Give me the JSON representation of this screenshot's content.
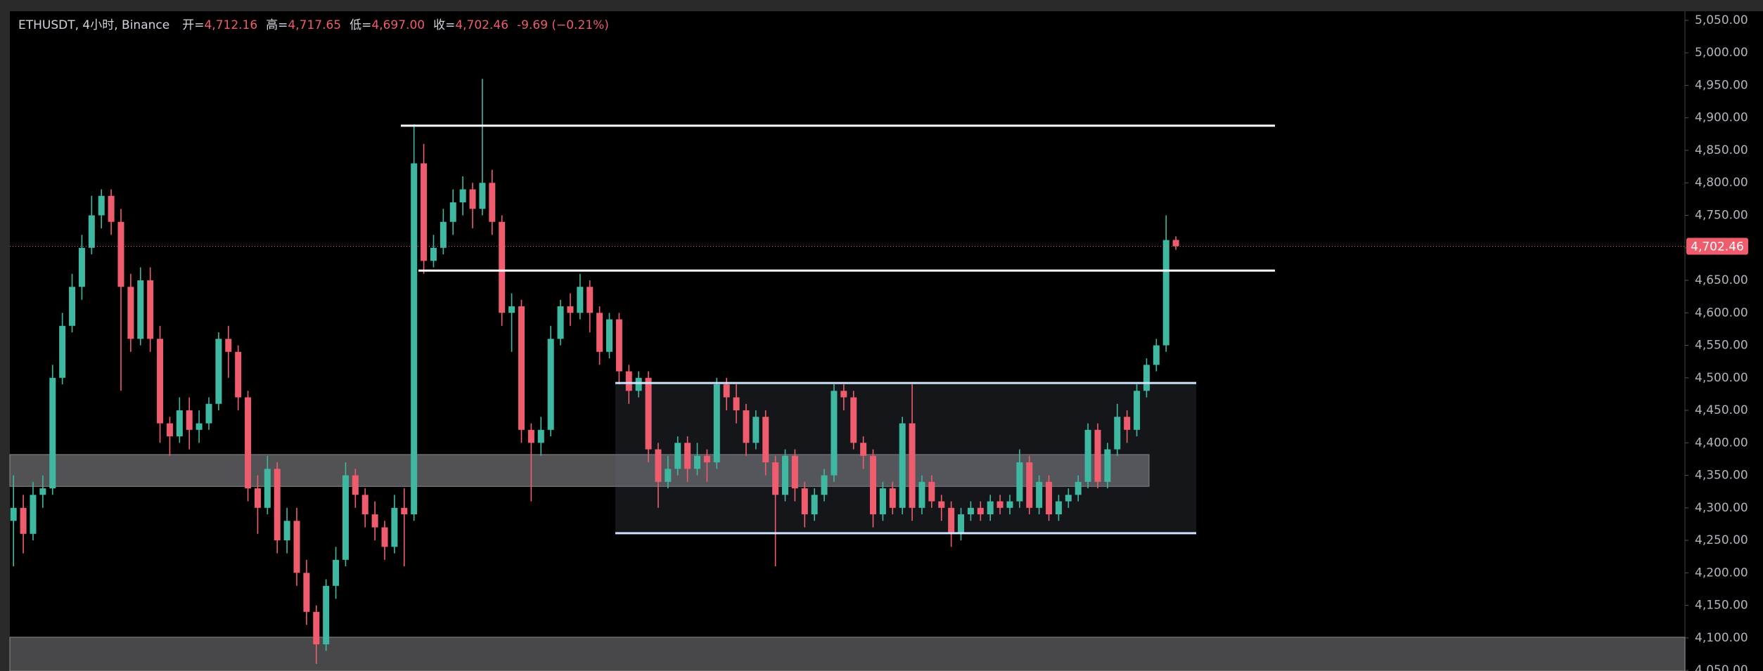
{
  "chart_data": {
    "type": "candlestick",
    "header": {
      "symbol": "ETHUSDT, 4小时, Binance",
      "fields": [
        [
          "开=",
          "4,712.16"
        ],
        [
          "高=",
          "4,717.65"
        ],
        [
          "低=",
          "4,697.00"
        ],
        [
          "收=",
          "4,702.46"
        ]
      ],
      "change": "-9.69 (−0.21%)"
    },
    "up_color": "#3fb8a2",
    "down_color": "#ee5c6e",
    "ylim": [
      4049,
      5064
    ],
    "yticks": [
      {
        "value": 4050,
        "label": "4,050.00"
      },
      {
        "value": 4100,
        "label": "4,100.00"
      },
      {
        "value": 4150,
        "label": "4,150.00"
      },
      {
        "value": 4200,
        "label": "4,200.00"
      },
      {
        "value": 4250,
        "label": "4,250.00"
      },
      {
        "value": 4300,
        "label": "4,300.00"
      },
      {
        "value": 4350,
        "label": "4,350.00"
      },
      {
        "value": 4400,
        "label": "4,400.00"
      },
      {
        "value": 4450,
        "label": "4,450.00"
      },
      {
        "value": 4500,
        "label": "4,500.00"
      },
      {
        "value": 4550,
        "label": "4,550.00"
      },
      {
        "value": 4600,
        "label": "4,600.00"
      },
      {
        "value": 4650,
        "label": "4,650.00"
      },
      {
        "value": 4700,
        "label": "4,700.00"
      },
      {
        "value": 4750,
        "label": "4,750.00"
      },
      {
        "value": 4800,
        "label": "4,800.00"
      },
      {
        "value": 4850,
        "label": "4,850.00"
      },
      {
        "value": 4900,
        "label": "4,900.00"
      },
      {
        "value": 4950,
        "label": "4,950.00"
      },
      {
        "value": 5000,
        "label": "5,000.00"
      },
      {
        "value": 5050,
        "label": "5,050.00"
      }
    ],
    "last_price_label": "4,702.46",
    "resistance_lines": [
      4888,
      4665
    ],
    "range_box": [
      4261,
      4492
    ],
    "zones": [
      [
        4333,
        4382
      ],
      [
        4049,
        4101
      ]
    ],
    "ohlc": [
      [
        4280,
        4350,
        4210,
        4300
      ],
      [
        4300,
        4320,
        4230,
        4260
      ],
      [
        4260,
        4340,
        4250,
        4320
      ],
      [
        4320,
        4350,
        4300,
        4330
      ],
      [
        4330,
        4520,
        4320,
        4500
      ],
      [
        4500,
        4600,
        4490,
        4580
      ],
      [
        4580,
        4660,
        4570,
        4640
      ],
      [
        4640,
        4720,
        4620,
        4700
      ],
      [
        4700,
        4780,
        4690,
        4750
      ],
      [
        4750,
        4790,
        4730,
        4780
      ],
      [
        4780,
        4790,
        4720,
        4740
      ],
      [
        4740,
        4760,
        4480,
        4640
      ],
      [
        4640,
        4660,
        4540,
        4560
      ],
      [
        4560,
        4670,
        4550,
        4650
      ],
      [
        4650,
        4670,
        4540,
        4560
      ],
      [
        4560,
        4580,
        4400,
        4430
      ],
      [
        4430,
        4440,
        4380,
        4410
      ],
      [
        4410,
        4470,
        4400,
        4450
      ],
      [
        4450,
        4470,
        4390,
        4420
      ],
      [
        4420,
        4450,
        4400,
        4430
      ],
      [
        4430,
        4470,
        4420,
        4460
      ],
      [
        4460,
        4570,
        4450,
        4560
      ],
      [
        4560,
        4580,
        4500,
        4540
      ],
      [
        4540,
        4550,
        4450,
        4470
      ],
      [
        4470,
        4480,
        4310,
        4330
      ],
      [
        4330,
        4350,
        4260,
        4300
      ],
      [
        4300,
        4380,
        4290,
        4360
      ],
      [
        4360,
        4370,
        4230,
        4250
      ],
      [
        4250,
        4300,
        4230,
        4280
      ],
      [
        4280,
        4300,
        4180,
        4200
      ],
      [
        4200,
        4220,
        4120,
        4140
      ],
      [
        4140,
        4150,
        4060,
        4090
      ],
      [
        4090,
        4190,
        4080,
        4180
      ],
      [
        4180,
        4240,
        4160,
        4220
      ],
      [
        4220,
        4370,
        4210,
        4350
      ],
      [
        4350,
        4360,
        4300,
        4320
      ],
      [
        4320,
        4330,
        4270,
        4290
      ],
      [
        4290,
        4310,
        4250,
        4270
      ],
      [
        4270,
        4280,
        4220,
        4240
      ],
      [
        4240,
        4320,
        4230,
        4300
      ],
      [
        4300,
        4330,
        4210,
        4290
      ],
      [
        4290,
        4890,
        4280,
        4830
      ],
      [
        4830,
        4860,
        4660,
        4680
      ],
      [
        4680,
        4720,
        4670,
        4700
      ],
      [
        4700,
        4760,
        4690,
        4740
      ],
      [
        4740,
        4790,
        4720,
        4770
      ],
      [
        4770,
        4810,
        4750,
        4790
      ],
      [
        4790,
        4800,
        4730,
        4760
      ],
      [
        4760,
        4960,
        4750,
        4800
      ],
      [
        4800,
        4820,
        4720,
        4740
      ],
      [
        4740,
        4750,
        4580,
        4600
      ],
      [
        4600,
        4630,
        4540,
        4610
      ],
      [
        4610,
        4620,
        4400,
        4420
      ],
      [
        4420,
        4430,
        4310,
        4400
      ],
      [
        4400,
        4440,
        4380,
        4420
      ],
      [
        4420,
        4580,
        4410,
        4560
      ],
      [
        4560,
        4620,
        4550,
        4610
      ],
      [
        4610,
        4630,
        4580,
        4600
      ],
      [
        4600,
        4660,
        4590,
        4640
      ],
      [
        4640,
        4650,
        4570,
        4600
      ],
      [
        4600,
        4610,
        4520,
        4540
      ],
      [
        4540,
        4600,
        4530,
        4590
      ],
      [
        4590,
        4600,
        4490,
        4510
      ],
      [
        4510,
        4520,
        4460,
        4480
      ],
      [
        4480,
        4510,
        4470,
        4500
      ],
      [
        4500,
        4510,
        4370,
        4390
      ],
      [
        4390,
        4400,
        4300,
        4340
      ],
      [
        4340,
        4380,
        4330,
        4360
      ],
      [
        4360,
        4410,
        4350,
        4400
      ],
      [
        4400,
        4410,
        4340,
        4360
      ],
      [
        4360,
        4400,
        4350,
        4380
      ],
      [
        4380,
        4390,
        4340,
        4370
      ],
      [
        4370,
        4500,
        4360,
        4490
      ],
      [
        4490,
        4500,
        4450,
        4470
      ],
      [
        4470,
        4490,
        4430,
        4450
      ],
      [
        4450,
        4460,
        4380,
        4400
      ],
      [
        4400,
        4450,
        4390,
        4440
      ],
      [
        4440,
        4450,
        4350,
        4370
      ],
      [
        4370,
        4380,
        4210,
        4320
      ],
      [
        4320,
        4390,
        4310,
        4380
      ],
      [
        4380,
        4390,
        4310,
        4330
      ],
      [
        4330,
        4340,
        4270,
        4290
      ],
      [
        4290,
        4330,
        4280,
        4320
      ],
      [
        4320,
        4360,
        4310,
        4350
      ],
      [
        4350,
        4490,
        4340,
        4480
      ],
      [
        4480,
        4490,
        4450,
        4470
      ],
      [
        4470,
        4480,
        4390,
        4400
      ],
      [
        4400,
        4410,
        4360,
        4380
      ],
      [
        4380,
        4390,
        4270,
        4290
      ],
      [
        4290,
        4340,
        4280,
        4330
      ],
      [
        4330,
        4340,
        4290,
        4300
      ],
      [
        4300,
        4440,
        4290,
        4430
      ],
      [
        4430,
        4490,
        4280,
        4300
      ],
      [
        4300,
        4350,
        4290,
        4340
      ],
      [
        4340,
        4350,
        4300,
        4310
      ],
      [
        4310,
        4320,
        4280,
        4300
      ],
      [
        4300,
        4310,
        4240,
        4260
      ],
      [
        4260,
        4300,
        4250,
        4290
      ],
      [
        4290,
        4310,
        4280,
        4300
      ],
      [
        4300,
        4310,
        4280,
        4290
      ],
      [
        4290,
        4320,
        4280,
        4310
      ],
      [
        4310,
        4320,
        4290,
        4300
      ],
      [
        4300,
        4320,
        4290,
        4310
      ],
      [
        4310,
        4390,
        4300,
        4370
      ],
      [
        4370,
        4380,
        4290,
        4300
      ],
      [
        4300,
        4350,
        4290,
        4340
      ],
      [
        4340,
        4350,
        4280,
        4290
      ],
      [
        4290,
        4320,
        4280,
        4310
      ],
      [
        4310,
        4330,
        4300,
        4320
      ],
      [
        4320,
        4350,
        4310,
        4340
      ],
      [
        4340,
        4430,
        4330,
        4420
      ],
      [
        4420,
        4430,
        4330,
        4340
      ],
      [
        4340,
        4400,
        4330,
        4390
      ],
      [
        4390,
        4460,
        4380,
        4440
      ],
      [
        4440,
        4450,
        4400,
        4420
      ],
      [
        4420,
        4490,
        4410,
        4480
      ],
      [
        4480,
        4530,
        4470,
        4520
      ],
      [
        4520,
        4560,
        4510,
        4550
      ],
      [
        4550,
        4750,
        4540,
        4712
      ],
      [
        4712.16,
        4717.65,
        4697,
        4702.46
      ]
    ]
  }
}
